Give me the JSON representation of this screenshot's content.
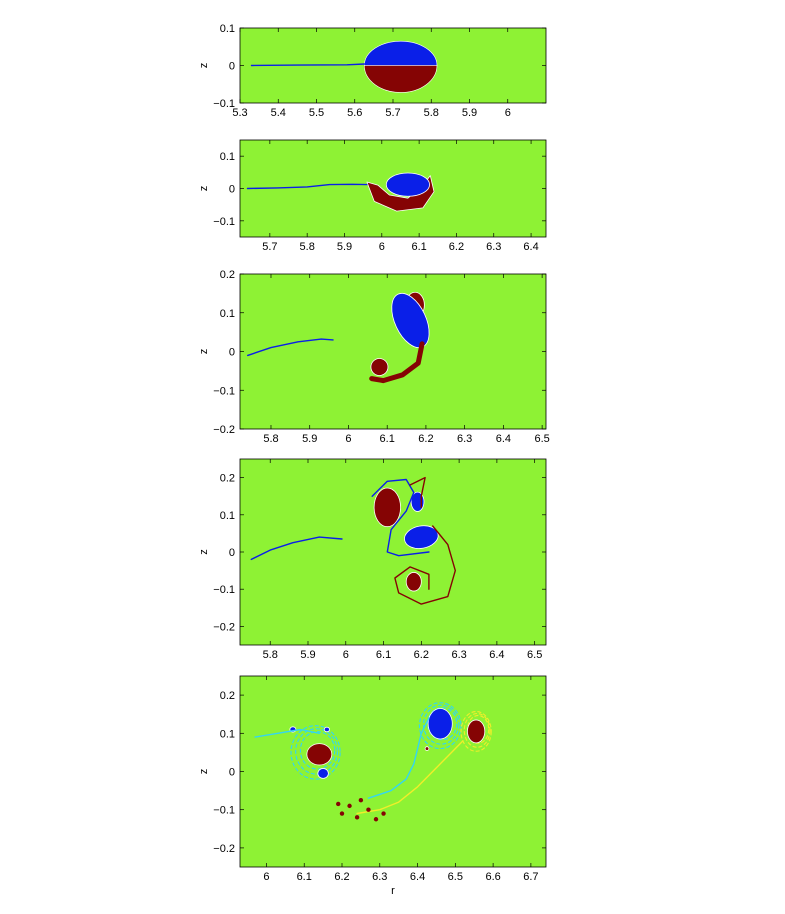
{
  "colors": {
    "background_field": "#8ef234",
    "positive_vorticity": "#0a1fe8",
    "negative_vorticity": "#850404",
    "filament_cyan": "#33d6f2",
    "filament_yellow": "#f0ee2a",
    "filament_red": "#e82a10"
  },
  "chart_data": [
    {
      "type": "heatmap",
      "title": "",
      "xlabel": "",
      "ylabel": "z",
      "xlim": [
        5.3,
        6.1
      ],
      "ylim": [
        -0.1,
        0.1
      ],
      "xticks": [
        5.3,
        5.4,
        5.5,
        5.6,
        5.7,
        5.8,
        5.9,
        6
      ],
      "xticklabels": [
        "5.3",
        "5.4",
        "5.5",
        "5.6",
        "5.7",
        "5.8",
        "5.9",
        "6"
      ],
      "yticks": [
        0.1,
        0,
        -0.1
      ],
      "yticklabels": [
        "0.1",
        "0",
        "−0.1"
      ],
      "features": [
        {
          "kind": "patch",
          "sign": "positive",
          "shape": "half-ellipse-top",
          "r": 5.72,
          "z": 0,
          "rx": 0.095,
          "rz": 0.065
        },
        {
          "kind": "patch",
          "sign": "negative",
          "shape": "half-ellipse-bottom",
          "r": 5.72,
          "z": 0,
          "rx": 0.095,
          "rz": 0.072
        },
        {
          "kind": "filament",
          "sign": "positive",
          "points": [
            [
              5.33,
              0
            ],
            [
              5.45,
              0.001
            ],
            [
              5.58,
              0.002
            ],
            [
              5.625,
              0.004
            ]
          ]
        }
      ]
    },
    {
      "type": "heatmap",
      "title": "",
      "xlabel": "",
      "ylabel": "z",
      "xlim": [
        5.62,
        6.44
      ],
      "ylim": [
        -0.15,
        0.15
      ],
      "xticks": [
        5.7,
        5.8,
        5.9,
        6,
        6.1,
        6.2,
        6.3,
        6.4
      ],
      "xticklabels": [
        "5.7",
        "5.8",
        "5.9",
        "6",
        "6.1",
        "6.2",
        "6.3",
        "6.4"
      ],
      "yticks": [
        0.1,
        0,
        -0.1
      ],
      "yticklabels": [
        "0.1",
        "0",
        "−0.1"
      ],
      "features": [
        {
          "kind": "crescent",
          "sign": "negative",
          "points": [
            [
              5.96,
              0.02
            ],
            [
              5.98,
              -0.04
            ],
            [
              6.04,
              -0.07
            ],
            [
              6.11,
              -0.06
            ],
            [
              6.14,
              -0.01
            ],
            [
              6.13,
              0.04
            ],
            [
              6.11,
              0.01
            ],
            [
              6.07,
              -0.03
            ],
            [
              6.02,
              -0.02
            ],
            [
              5.99,
              0.01
            ]
          ]
        },
        {
          "kind": "patch",
          "sign": "positive",
          "shape": "ellipse",
          "r": 6.07,
          "z": 0.012,
          "rx": 0.058,
          "rz": 0.036
        },
        {
          "kind": "filament",
          "sign": "positive",
          "points": [
            [
              5.64,
              0
            ],
            [
              5.72,
              0.002
            ],
            [
              5.8,
              0.005
            ],
            [
              5.86,
              0.012
            ],
            [
              5.92,
              0.013
            ],
            [
              5.96,
              0.012
            ]
          ]
        }
      ]
    },
    {
      "type": "heatmap",
      "title": "",
      "xlabel": "",
      "ylabel": "z",
      "xlim": [
        5.72,
        6.51
      ],
      "ylim": [
        -0.2,
        0.2
      ],
      "xticks": [
        5.8,
        5.9,
        6,
        6.1,
        6.2,
        6.3,
        6.4,
        6.5
      ],
      "xticklabels": [
        "5.8",
        "5.9",
        "6",
        "6.1",
        "6.2",
        "6.3",
        "6.4",
        "6.5"
      ],
      "yticks": [
        0.2,
        0.1,
        0,
        -0.1,
        -0.2
      ],
      "yticklabels": [
        "0.2",
        "0.1",
        "0",
        "−0.1",
        "−0.2"
      ],
      "features": [
        {
          "kind": "patch",
          "sign": "negative",
          "shape": "ellipse",
          "r": 6.172,
          "z": 0.12,
          "rx": 0.024,
          "rz": 0.033
        },
        {
          "kind": "patch",
          "sign": "positive",
          "shape": "ellipse",
          "r": 6.16,
          "z": 0.08,
          "rx": 0.04,
          "rz": 0.075,
          "rot": -25
        },
        {
          "kind": "patch",
          "sign": "negative",
          "shape": "ellipse",
          "r": 6.08,
          "z": -0.04,
          "rx": 0.022,
          "rz": 0.022
        },
        {
          "kind": "filament",
          "sign": "negative",
          "width": 5,
          "points": [
            [
              6.19,
              0.02
            ],
            [
              6.18,
              -0.03
            ],
            [
              6.14,
              -0.06
            ],
            [
              6.09,
              -0.075
            ],
            [
              6.06,
              -0.07
            ]
          ]
        },
        {
          "kind": "filament",
          "sign": "positive",
          "points": [
            [
              5.74,
              -0.01
            ],
            [
              5.8,
              0.01
            ],
            [
              5.87,
              0.025
            ],
            [
              5.93,
              0.032
            ],
            [
              5.96,
              0.03
            ]
          ]
        }
      ]
    },
    {
      "type": "heatmap",
      "title": "",
      "xlabel": "",
      "ylabel": "z",
      "xlim": [
        5.72,
        6.53
      ],
      "ylim": [
        -0.25,
        0.25
      ],
      "xticks": [
        5.8,
        5.9,
        6,
        6.1,
        6.2,
        6.3,
        6.4,
        6.5
      ],
      "xticklabels": [
        "5.8",
        "5.9",
        "6",
        "6.1",
        "6.2",
        "6.3",
        "6.4",
        "6.5"
      ],
      "yticks": [
        0.2,
        0.1,
        0,
        -0.1,
        -0.2
      ],
      "yticklabels": [
        "0.2",
        "0.1",
        "0",
        "−0.1",
        "−0.2"
      ],
      "features": [
        {
          "kind": "patch",
          "sign": "negative",
          "shape": "ellipse",
          "r": 6.11,
          "z": 0.12,
          "rx": 0.035,
          "rz": 0.052
        },
        {
          "kind": "patch",
          "sign": "positive",
          "shape": "ellipse",
          "r": 6.19,
          "z": 0.135,
          "rx": 0.017,
          "rz": 0.026
        },
        {
          "kind": "patch",
          "sign": "positive",
          "shape": "ellipse",
          "r": 6.2,
          "z": 0.04,
          "rx": 0.045,
          "rz": 0.03,
          "rot": -10
        },
        {
          "kind": "patch",
          "sign": "negative",
          "shape": "ellipse",
          "r": 6.18,
          "z": -0.08,
          "rx": 0.02,
          "rz": 0.025
        },
        {
          "kind": "filament",
          "sign": "positive",
          "points": [
            [
              6.07,
              0.15
            ],
            [
              6.11,
              0.19
            ],
            [
              6.16,
              0.195
            ],
            [
              6.18,
              0.16
            ],
            [
              6.16,
              0.11
            ],
            [
              6.12,
              0.06
            ],
            [
              6.11,
              0.0
            ],
            [
              6.14,
              -0.01
            ],
            [
              6.22,
              0.0
            ]
          ]
        },
        {
          "kind": "filament",
          "sign": "negative",
          "points": [
            [
              6.17,
              0.18
            ],
            [
              6.21,
              0.2
            ],
            [
              6.2,
              0.15
            ],
            [
              6.2,
              0.12
            ]
          ]
        },
        {
          "kind": "filament",
          "sign": "negative",
          "points": [
            [
              6.23,
              0.07
            ],
            [
              6.27,
              0.02
            ],
            [
              6.29,
              -0.05
            ],
            [
              6.27,
              -0.12
            ],
            [
              6.2,
              -0.14
            ],
            [
              6.14,
              -0.11
            ],
            [
              6.13,
              -0.07
            ],
            [
              6.17,
              -0.04
            ],
            [
              6.22,
              -0.06
            ],
            [
              6.22,
              -0.1
            ]
          ]
        },
        {
          "kind": "filament",
          "sign": "positive",
          "points": [
            [
              5.75,
              -0.02
            ],
            [
              5.8,
              0.005
            ],
            [
              5.86,
              0.025
            ],
            [
              5.93,
              0.04
            ],
            [
              5.99,
              0.035
            ]
          ]
        }
      ]
    },
    {
      "type": "heatmap",
      "title": "",
      "xlabel": "r",
      "ylabel": "z",
      "xlim": [
        5.93,
        6.74
      ],
      "ylim": [
        -0.25,
        0.25
      ],
      "xticks": [
        6,
        6.1,
        6.2,
        6.3,
        6.4,
        6.5,
        6.6,
        6.7
      ],
      "xticklabels": [
        "6",
        "6.1",
        "6.2",
        "6.3",
        "6.4",
        "6.5",
        "6.6",
        "6.7"
      ],
      "yticks": [
        0.2,
        0.1,
        0,
        -0.1,
        -0.2
      ],
      "yticklabels": [
        "0.2",
        "0.1",
        "0",
        "−0.1",
        "−0.2"
      ],
      "features": [
        {
          "kind": "halo",
          "sign": "cyan",
          "r": 6.13,
          "z": 0.05,
          "rx": 0.065,
          "rz": 0.07
        },
        {
          "kind": "patch",
          "sign": "negative",
          "shape": "ellipse",
          "r": 6.14,
          "z": 0.045,
          "rx": 0.033,
          "rz": 0.028
        },
        {
          "kind": "patch",
          "sign": "positive",
          "shape": "ellipse",
          "r": 6.15,
          "z": -0.005,
          "rx": 0.014,
          "rz": 0.013
        },
        {
          "kind": "patch",
          "sign": "positive",
          "shape": "ellipse",
          "r": 6.07,
          "z": 0.11,
          "rx": 0.008,
          "rz": 0.007
        },
        {
          "kind": "patch",
          "sign": "positive",
          "shape": "ellipse",
          "r": 6.16,
          "z": 0.11,
          "rx": 0.007,
          "rz": 0.006
        },
        {
          "kind": "halo",
          "sign": "cyan",
          "r": 6.46,
          "z": 0.12,
          "rx": 0.055,
          "rz": 0.06
        },
        {
          "kind": "patch",
          "sign": "positive",
          "shape": "ellipse",
          "r": 6.46,
          "z": 0.125,
          "rx": 0.032,
          "rz": 0.04
        },
        {
          "kind": "halo",
          "sign": "yellow",
          "r": 6.555,
          "z": 0.105,
          "rx": 0.04,
          "rz": 0.052
        },
        {
          "kind": "patch",
          "sign": "negative",
          "shape": "ellipse",
          "r": 6.555,
          "z": 0.105,
          "rx": 0.023,
          "rz": 0.03
        },
        {
          "kind": "patch",
          "sign": "negative",
          "shape": "ellipse",
          "r": 6.425,
          "z": 0.06,
          "rx": 0.005,
          "rz": 0.005
        },
        {
          "kind": "filament",
          "sign": "cyan",
          "points": [
            [
              5.97,
              0.09
            ],
            [
              6.03,
              0.1
            ],
            [
              6.09,
              0.11
            ],
            [
              6.14,
              0.1
            ]
          ]
        },
        {
          "kind": "filament",
          "sign": "cyan",
          "points": [
            [
              6.43,
              0.14
            ],
            [
              6.41,
              0.1
            ],
            [
              6.4,
              0.06
            ],
            [
              6.39,
              0.02
            ],
            [
              6.37,
              -0.02
            ],
            [
              6.33,
              -0.05
            ],
            [
              6.27,
              -0.07
            ]
          ]
        },
        {
          "kind": "filament",
          "sign": "yellow",
          "points": [
            [
              6.52,
              0.08
            ],
            [
              6.49,
              0.05
            ],
            [
              6.45,
              0.01
            ],
            [
              6.4,
              -0.04
            ],
            [
              6.35,
              -0.08
            ],
            [
              6.3,
              -0.1
            ],
            [
              6.24,
              -0.11
            ]
          ]
        },
        {
          "kind": "dots",
          "sign": "negative",
          "points": [
            [
              6.19,
              -0.085
            ],
            [
              6.2,
              -0.11
            ],
            [
              6.22,
              -0.09
            ],
            [
              6.24,
              -0.12
            ],
            [
              6.27,
              -0.1
            ],
            [
              6.29,
              -0.125
            ],
            [
              6.31,
              -0.11
            ],
            [
              6.25,
              -0.075
            ]
          ]
        }
      ]
    }
  ]
}
